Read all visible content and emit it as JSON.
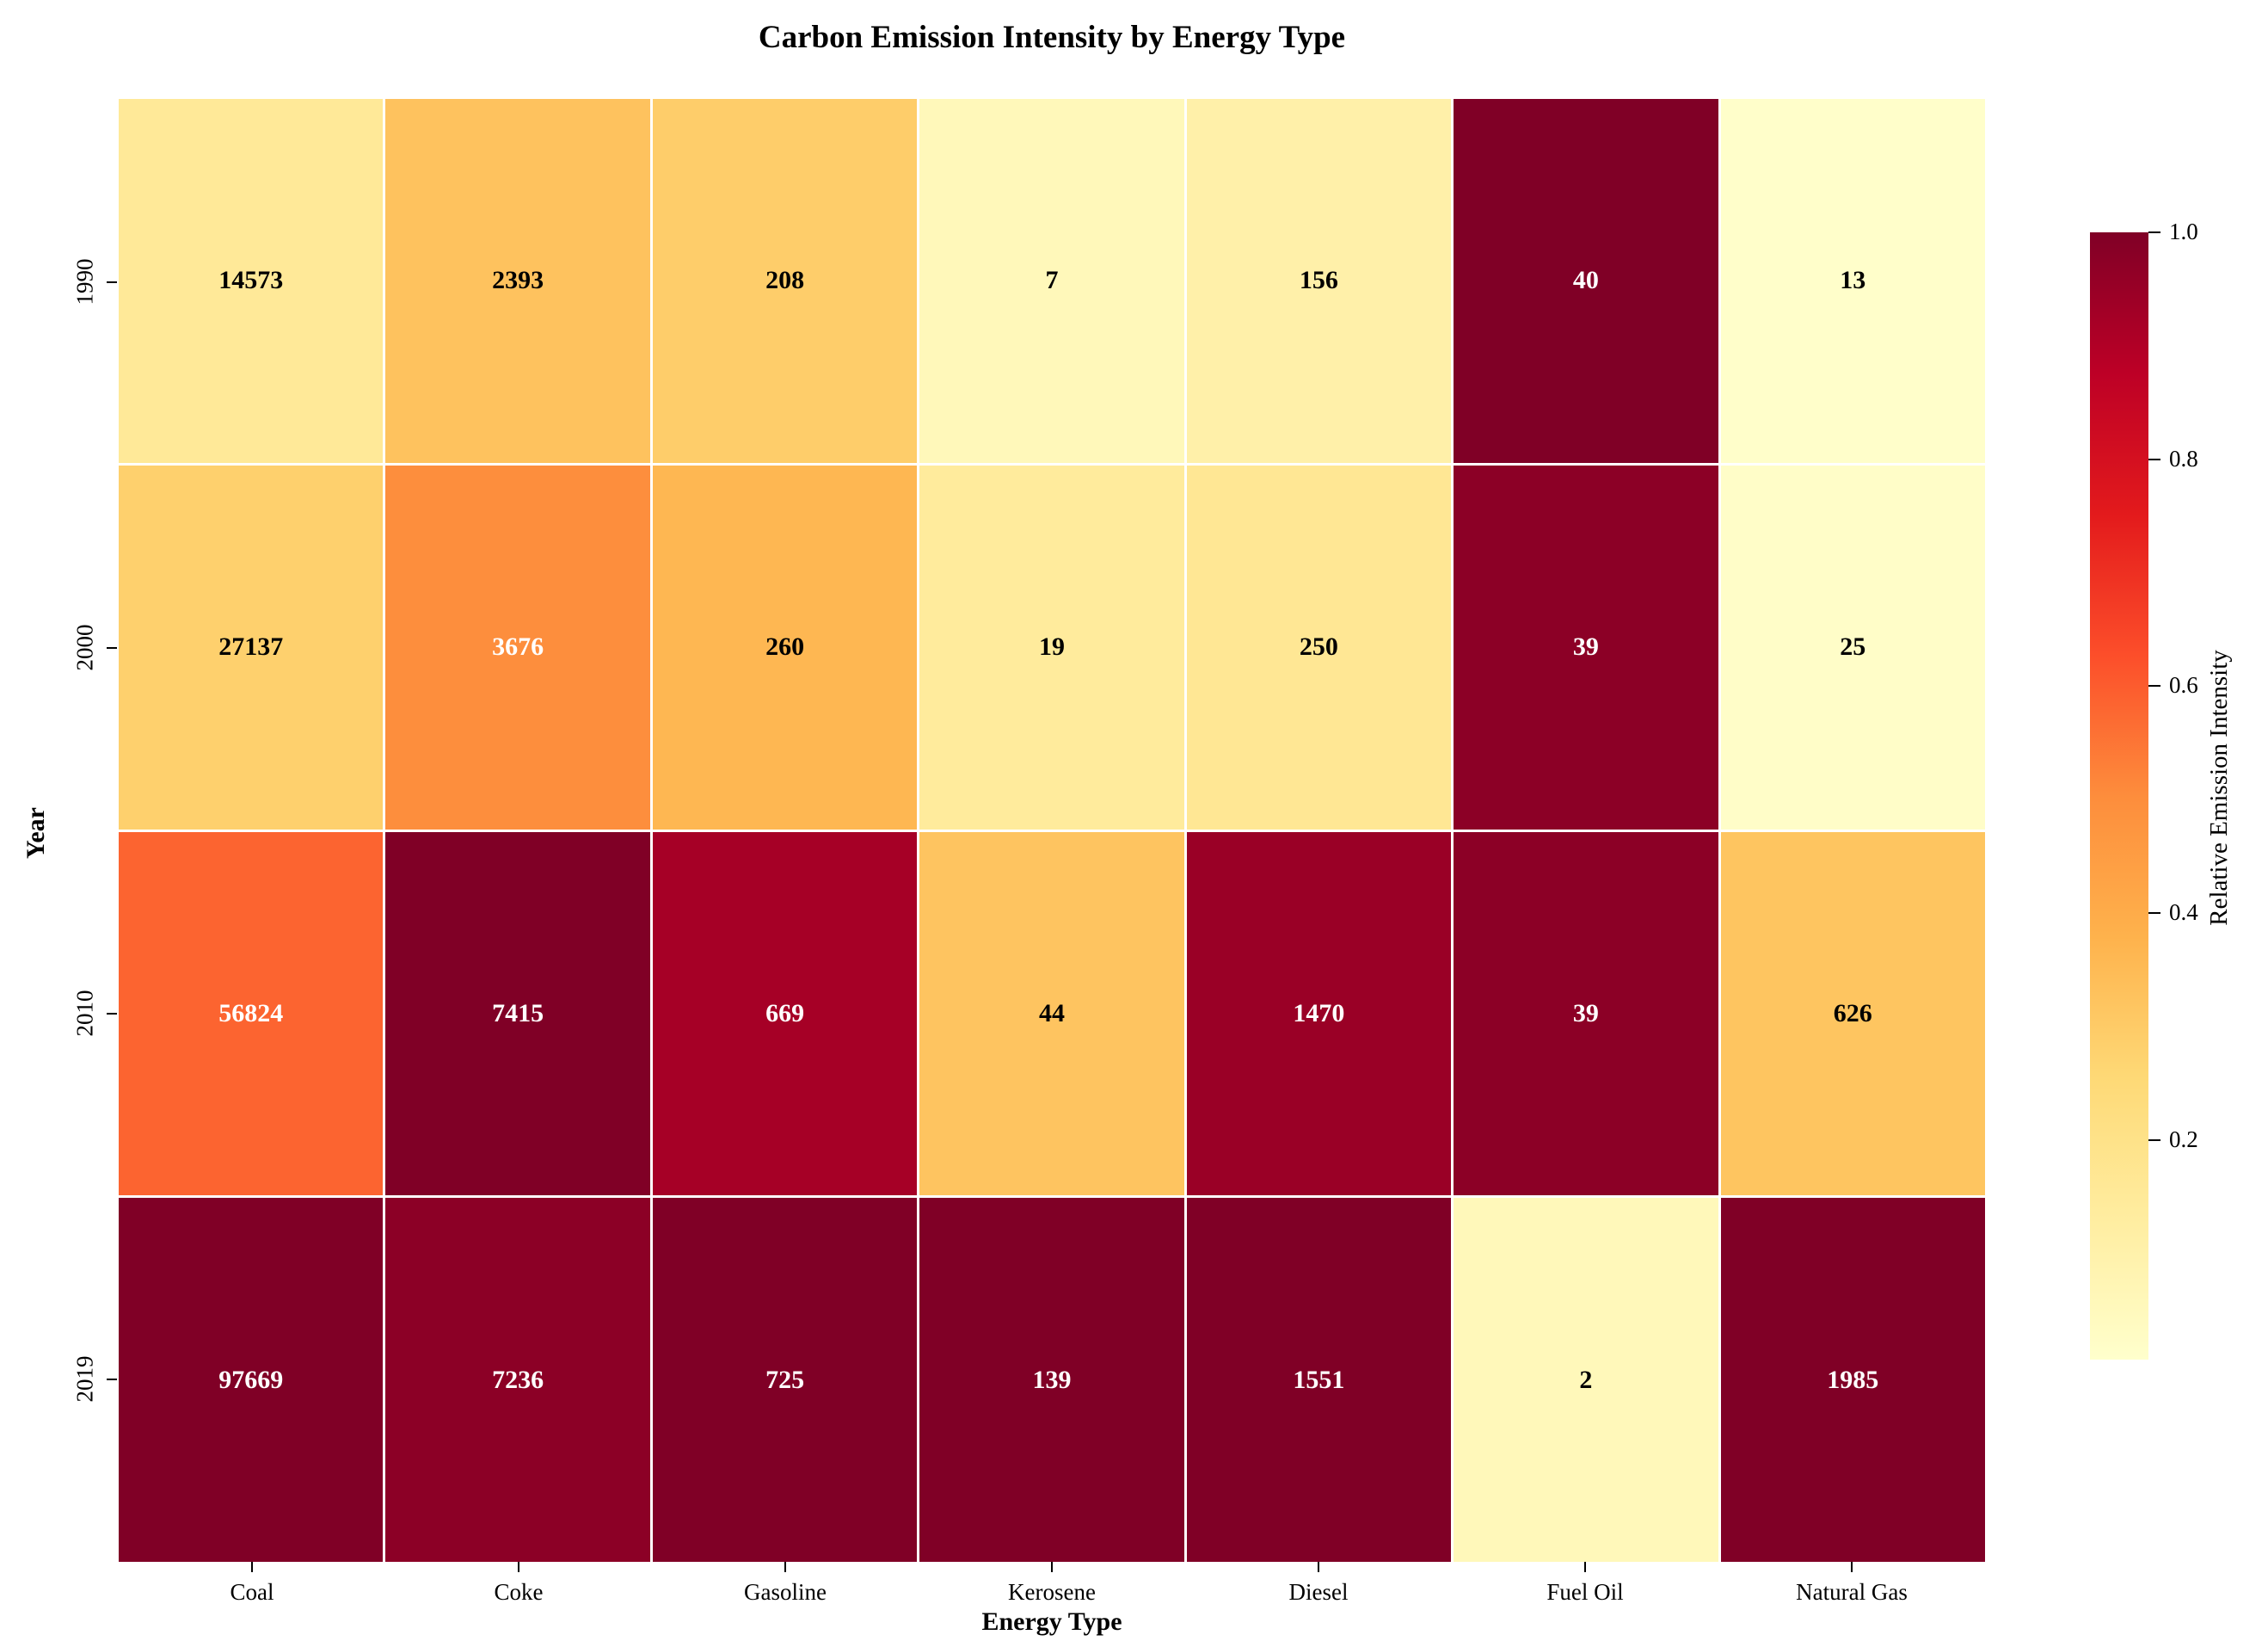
{
  "chart_data": {
    "type": "heatmap",
    "title": "Carbon Emission Intensity by Energy Type",
    "xlabel": "Energy Type",
    "ylabel": "Year",
    "columns": [
      "Coal",
      "Coke",
      "Gasoline",
      "Kerosene",
      "Diesel",
      "Fuel Oil",
      "Natural Gas"
    ],
    "rows": [
      "1990",
      "2000",
      "2010",
      "2019"
    ],
    "values": [
      [
        14573,
        2393,
        208,
        7,
        156,
        40,
        13
      ],
      [
        27137,
        3676,
        260,
        19,
        250,
        39,
        25
      ],
      [
        56824,
        7415,
        669,
        44,
        1470,
        39,
        626
      ],
      [
        97669,
        7236,
        725,
        139,
        1551,
        2,
        1985
      ]
    ],
    "normalization": "each column divided by its maximum value",
    "colormap": "YlOrRd",
    "cell_colors": [
      [
        "#FFE998",
        "#FEC25E",
        "#FECD6A",
        "#FFF8BA",
        "#FFF0A9",
        "#800026",
        "#FFFECA"
      ],
      [
        "#FED06D",
        "#FD8E3D",
        "#FEB752",
        "#FFEB9C",
        "#FFE794",
        "#8C0026",
        "#FFFDC8"
      ],
      [
        "#FC6430",
        "#800026",
        "#A60026",
        "#FEC460",
        "#9A0026",
        "#8C0026",
        "#FEC560"
      ],
      [
        "#800026",
        "#8C0026",
        "#800026",
        "#800026",
        "#800026",
        "#FFF8BA",
        "#800026"
      ]
    ],
    "cell_text_colors": [
      [
        "#000000",
        "#000000",
        "#000000",
        "#000000",
        "#000000",
        "#ffffff",
        "#000000"
      ],
      [
        "#000000",
        "#ffffff",
        "#000000",
        "#000000",
        "#000000",
        "#ffffff",
        "#000000"
      ],
      [
        "#ffffff",
        "#ffffff",
        "#ffffff",
        "#000000",
        "#ffffff",
        "#ffffff",
        "#000000"
      ],
      [
        "#ffffff",
        "#ffffff",
        "#ffffff",
        "#ffffff",
        "#ffffff",
        "#000000",
        "#ffffff"
      ]
    ],
    "colorbar": {
      "label": "Relative Emission Intensity",
      "ticks": [
        "1.0",
        "0.8",
        "0.6",
        "0.4",
        "0.2"
      ],
      "tick_values": [
        1.0,
        0.8,
        0.6,
        0.4,
        0.2
      ],
      "range": [
        0.0065,
        1.0
      ],
      "gradient_top_to_bottom": [
        "#800026",
        "#BD0026",
        "#E31A1C",
        "#FC4E2A",
        "#FD8D3C",
        "#FEB24C",
        "#FED976",
        "#FFEDA0",
        "#FFFFCC"
      ]
    }
  }
}
